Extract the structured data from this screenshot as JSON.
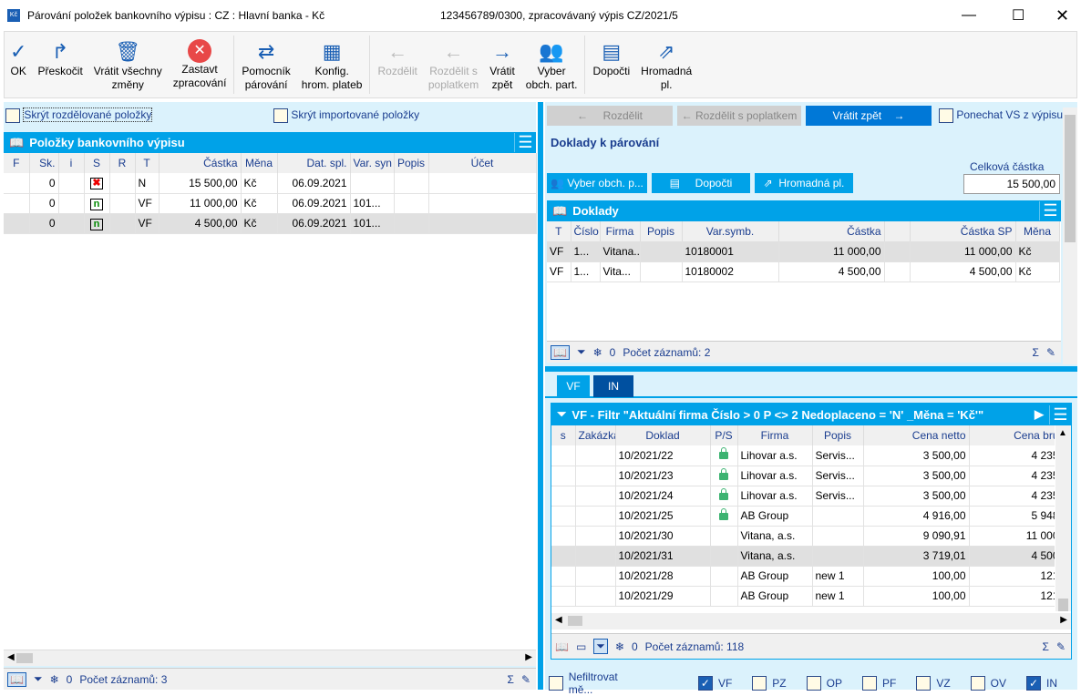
{
  "window": {
    "title": "Párování položek bankovního výpisu : CZ : Hlavní banka - Kč",
    "subtitle": "123456789/0300, zpracovávaný výpis CZ/2021/5"
  },
  "toolbar": [
    {
      "l1": "OK",
      "l2": "",
      "icon": "✓",
      "dis": false
    },
    {
      "l1": "Přeskočit",
      "l2": "",
      "icon": "↱",
      "dis": false
    },
    {
      "l1": "Vrátit všechny",
      "l2": "změny",
      "icon": "🗑",
      "dis": false
    },
    {
      "l1": "Zastavt",
      "l2": "zpracování",
      "icon": "✕",
      "dis": false
    },
    {
      "sep": true
    },
    {
      "l1": "Pomocník",
      "l2": "párování",
      "icon": "⇄",
      "dis": false
    },
    {
      "l1": "Konfig.",
      "l2": "hrom. plateb",
      "icon": "▦",
      "dis": false
    },
    {
      "sep": true
    },
    {
      "l1": "Rozdělit",
      "l2": "",
      "icon": "←",
      "dis": true
    },
    {
      "l1": "Rozdělit s",
      "l2": "poplatkem",
      "icon": "←",
      "dis": true
    },
    {
      "l1": "Vrátit",
      "l2": "zpět",
      "icon": "→",
      "dis": false
    },
    {
      "l1": "Vyber",
      "l2": "obch. part.",
      "icon": "👥",
      "dis": false
    },
    {
      "sep": true
    },
    {
      "l1": "Dopočti",
      "l2": "",
      "icon": "▤",
      "dis": false
    },
    {
      "l1": "Hromadná",
      "l2": "pl.",
      "icon": "⇗",
      "dis": false
    }
  ],
  "left": {
    "hide_split": "Skrýt rozdělované položky",
    "hide_imported": "Skrýt importované položky",
    "grid_title": "Položky bankovního výpisu",
    "columns": [
      "F",
      "Sk.",
      "i",
      "S",
      "R",
      "T",
      "Částka",
      "Měna",
      "Dat. spl.",
      "Var. syn",
      "Popis",
      "Účet"
    ],
    "rows": [
      [
        "",
        "0",
        "",
        "x",
        "",
        "N",
        "15 500,00",
        "Kč",
        "06.09.2021",
        "",
        "",
        ""
      ],
      [
        "",
        "0",
        "",
        "n",
        "",
        "VF",
        "11 000,00",
        "Kč",
        "06.09.2021",
        "101...",
        "",
        ""
      ],
      [
        "",
        "0",
        "",
        "n",
        "",
        "VF",
        "4 500,00",
        "Kč",
        "06.09.2021",
        "101...",
        "",
        ""
      ]
    ],
    "filter_count": "0",
    "records": "Počet záznamů: 3"
  },
  "right": {
    "split": "Rozdělit",
    "split_fee": "Rozdělit s poplatkem",
    "revert": "Vrátit zpět",
    "keep_vs": "Ponechat VS z výpisu",
    "section": "Doklady k párování",
    "total_label": "Celková částka",
    "total_value": "15 500,00",
    "pick_partner": "Vyber obch. p...",
    "recalc": "Dopočti",
    "bulk": "Hromadná pl.",
    "docs_title": "Doklady",
    "doc_columns": [
      "T",
      "Číslo",
      "Firma",
      "Popis",
      "Var.symb.",
      "Částka",
      "",
      "Částka SP",
      "Měna"
    ],
    "doc_rows": [
      [
        "VF",
        "1...",
        "Vitana...",
        "",
        "10180001",
        "11 000,00",
        "",
        "11 000,00",
        "Kč"
      ],
      [
        "VF",
        "1...",
        "Vita...",
        "",
        "10180002",
        "4 500,00",
        "",
        "4 500,00",
        "Kč"
      ]
    ],
    "doc_filter_count": "0",
    "doc_records": "Počet záznamů: 2",
    "tabs": [
      "VF",
      "IN"
    ],
    "filter_title": "VF - Filtr \"Aktuální firma  Číslo > 0  P <> 2  Nedoplaceno = 'N' _Měna = 'Kč'\"",
    "inv_columns": [
      "s",
      "Zakázka",
      "Doklad",
      "P/S",
      "Firma",
      "Popis",
      "Cena netto",
      "Cena bru"
    ],
    "inv_rows": [
      [
        "",
        "",
        "10/2021/22",
        "lock",
        "Lihovar a.s.",
        "Servis...",
        "3 500,00",
        "4 235"
      ],
      [
        "",
        "",
        "10/2021/23",
        "lock",
        "Lihovar a.s.",
        "Servis...",
        "3 500,00",
        "4 235"
      ],
      [
        "",
        "",
        "10/2021/24",
        "lock",
        "Lihovar a.s.",
        "Servis...",
        "3 500,00",
        "4 235"
      ],
      [
        "",
        "",
        "10/2021/25",
        "lock",
        "AB Group",
        "",
        "4 916,00",
        "5 948"
      ],
      [
        "",
        "",
        "10/2021/30",
        "",
        "Vitana, a.s.",
        "",
        "9 090,91",
        "11 000"
      ],
      [
        "",
        "",
        "10/2021/31",
        "",
        "Vitana, a.s.",
        "",
        "3 719,01",
        "4 500"
      ],
      [
        "",
        "",
        "10/2021/28",
        "",
        "AB Group",
        "new 1",
        "100,00",
        "121"
      ],
      [
        "",
        "",
        "10/2021/29",
        "",
        "AB Group",
        "new 1",
        "100,00",
        "121"
      ]
    ],
    "inv_filter_count": "0",
    "inv_records": "Počet záznamů: 118",
    "bottom_checks": [
      {
        "label": "Nefiltrovat mě...",
        "checked": false
      },
      {
        "label": "VF",
        "checked": true
      },
      {
        "label": "PZ",
        "checked": false
      },
      {
        "label": "OP",
        "checked": false
      },
      {
        "label": "PF",
        "checked": false
      },
      {
        "label": "VZ",
        "checked": false
      },
      {
        "label": "OV",
        "checked": false
      },
      {
        "label": "IN",
        "checked": true
      }
    ]
  }
}
